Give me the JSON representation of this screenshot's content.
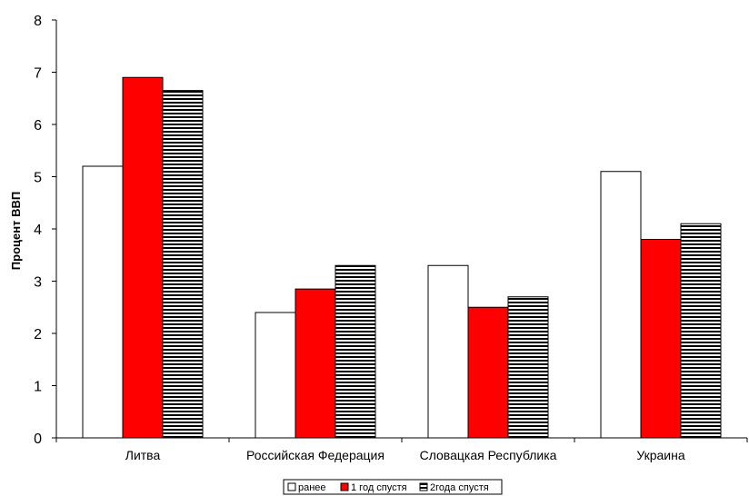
{
  "chart_data": {
    "type": "bar",
    "title": "",
    "xlabel": "",
    "ylabel": "Процент ВВП",
    "ylim": [
      0,
      8
    ],
    "yticks": [
      0,
      1,
      2,
      3,
      4,
      5,
      6,
      7,
      8
    ],
    "grid": false,
    "legend_position": "bottom",
    "categories": [
      "Литва",
      "Российская Федерация",
      "Словацкая Республика",
      "Украина"
    ],
    "series": [
      {
        "name": "ранее",
        "values": [
          5.2,
          2.4,
          3.3,
          5.1
        ],
        "color": "#ffffff",
        "pattern": "solid"
      },
      {
        "name": "1 год спустя",
        "values": [
          6.9,
          2.85,
          2.5,
          3.8
        ],
        "color": "#ff0000",
        "pattern": "solid"
      },
      {
        "name": "2года спустя",
        "values": [
          6.65,
          3.3,
          2.7,
          4.1
        ],
        "color": "#000000",
        "pattern": "horizontal-stripes"
      }
    ]
  }
}
